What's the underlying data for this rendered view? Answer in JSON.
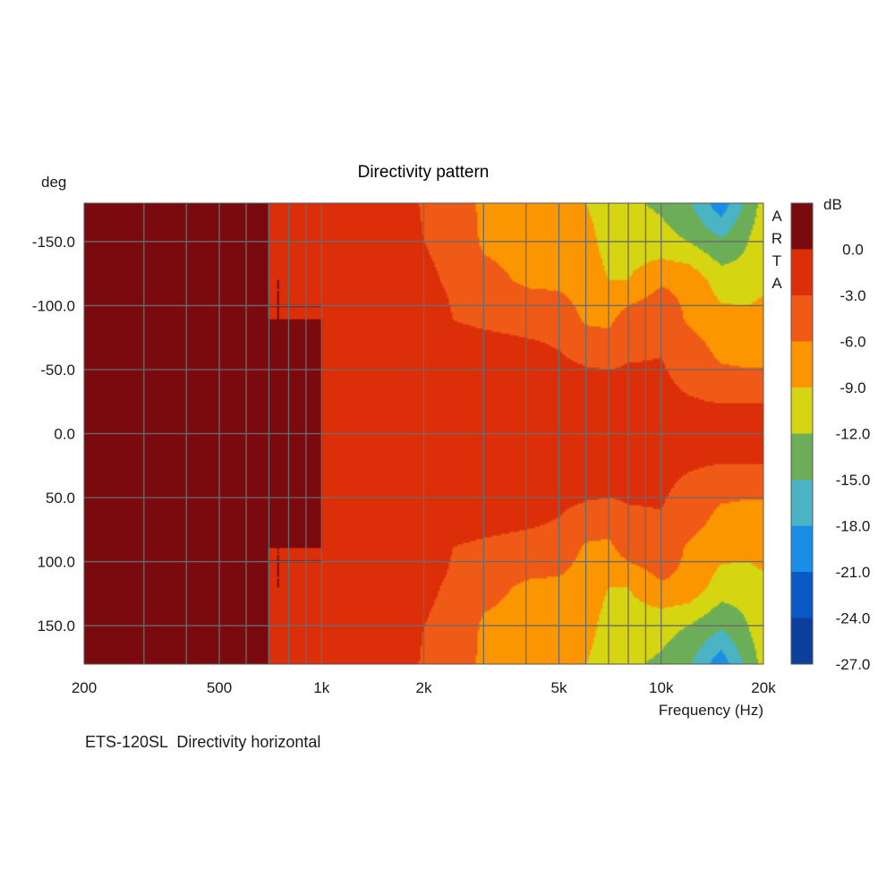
{
  "chart_data": {
    "type": "heatmap",
    "title": "Directivity pattern",
    "ylabel": "deg",
    "xlabel": "Frequency (Hz)",
    "colorbar_label": "dB",
    "watermark": "ARTA",
    "caption": "ETS-120SL  Directivity horizontal",
    "x_scale": "log",
    "xlim": [
      200,
      20000
    ],
    "ylim": [
      -180,
      180
    ],
    "y_ticks": [
      "-150.0",
      "-100.0",
      "-50.0",
      "0.0",
      "50.0",
      "100.0",
      "150.0"
    ],
    "y_tick_values": [
      -150,
      -100,
      -50,
      0,
      50,
      100,
      150
    ],
    "x_tick_labels": [
      "200",
      "500",
      "1k",
      "2k",
      "5k",
      "10k",
      "20k"
    ],
    "x_tick_values": [
      200,
      500,
      1000,
      2000,
      5000,
      10000,
      20000
    ],
    "grid": true,
    "colorbar_levels": [
      "0.0",
      "-3.0",
      "-6.0",
      "-9.0",
      "-12.0",
      "-15.0",
      "-18.0",
      "-21.0",
      "-24.0",
      "-27.0"
    ],
    "colorbar_colors": [
      "#7a0a0e",
      "#dd2e0a",
      "#ef5a16",
      "#fb9500",
      "#d5d511",
      "#6cae58",
      "#4ab4c4",
      "#1a8ee6",
      "#0959c7",
      "#0b3f9c"
    ],
    "freq_hz": [
      200,
      300,
      400,
      700,
      1000,
      1500,
      2000,
      2500,
      3000,
      4000,
      5000,
      6000,
      7000,
      8000,
      10000,
      12000,
      15000,
      18000,
      20000
    ],
    "angle_deg": [
      0,
      30,
      60,
      90,
      120,
      150,
      180
    ],
    "level_db": [
      [
        0.0,
        0.0,
        -2.2,
        -2.8,
        -3.0,
        -3.2,
        -3.3,
        -3.3,
        -3.4,
        -3.5,
        -3.5,
        -3.5,
        -3.6,
        -3.8,
        -4.5,
        -4.5,
        -4.3,
        -4.2,
        -4.2
      ],
      [
        0.0,
        -0.3,
        -2.3,
        -2.8,
        -3.0,
        -3.2,
        -3.3,
        -3.3,
        -3.4,
        -3.6,
        -3.8,
        -4.2,
        -4.5,
        -4.8,
        -5.5,
        -6.0,
        -6.5,
        -6.5,
        -6.5
      ],
      [
        0.0,
        -0.5,
        -2.4,
        -2.9,
        -3.0,
        -3.3,
        -3.6,
        -4.0,
        -4.5,
        -5.0,
        -5.8,
        -6.6,
        -6.8,
        -6.2,
        -6.0,
        -7.0,
        -9.5,
        -10.0,
        -10.0
      ],
      [
        0.0,
        -0.8,
        -2.5,
        -3.0,
        -3.0,
        -3.3,
        -4.5,
        -6.2,
        -6.6,
        -7.0,
        -7.0,
        -9.5,
        -9.8,
        -7.5,
        -6.5,
        -9.5,
        -11.0,
        -11.0,
        -10.5
      ],
      [
        0.0,
        -1.0,
        -2.6,
        -3.0,
        -3.0,
        -3.5,
        -5.5,
        -6.5,
        -8.0,
        -9.5,
        -9.8,
        -10.5,
        -12.0,
        -12.0,
        -9.5,
        -9.8,
        -13.5,
        -14.0,
        -13.0
      ],
      [
        0.0,
        -1.0,
        -2.7,
        -3.0,
        -3.1,
        -3.6,
        -6.0,
        -6.8,
        -9.5,
        -10.0,
        -10.5,
        -11.0,
        -13.0,
        -13.5,
        -14.0,
        -15.0,
        -17.5,
        -15.0,
        -13.0
      ],
      [
        0.0,
        -1.0,
        -2.7,
        -3.0,
        -3.2,
        -3.7,
        -6.3,
        -7.0,
        -9.8,
        -10.5,
        -11.0,
        -12.0,
        -13.5,
        -14.5,
        -15.5,
        -17.5,
        -23.0,
        -17.0,
        -14.0
      ]
    ]
  }
}
